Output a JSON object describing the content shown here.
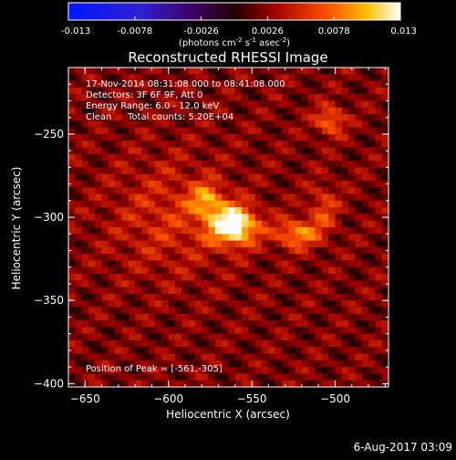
{
  "colorbar": {
    "ticks": [
      "-0.013",
      "-0.0078",
      "-0.0026",
      "0.0026",
      "0.0078",
      "0.013"
    ],
    "unit_label": "(photons cm",
    "unit_exp1": "-2",
    "unit_mid": " s",
    "unit_exp2": "-1",
    "unit_tail": " asec",
    "unit_exp3": "-2",
    "unit_close": ")"
  },
  "title": "Reconstructed RHESSI Image",
  "annotations": {
    "time_range": "17-Nov-2014 08:31:08.000 to 08:41:08.000",
    "detectors": "Detectors: 3F 6F 9F, Att 0",
    "energy": "Energy Range: 6.0 - 12.0 keV",
    "clean": "Clean",
    "total_counts": "Total counts: 5.20E+04",
    "peak": "Position of Peak = [-561,-305]"
  },
  "footer_date": "6-Aug-2017 03:09",
  "chart_data": {
    "type": "heatmap",
    "title": "Reconstructed RHESSI Image",
    "xlabel": "Heliocentric X (arcsec)",
    "ylabel": "Heliocentric Y (arcsec)",
    "xlim": [
      -660,
      -468
    ],
    "ylim": [
      -402,
      -210
    ],
    "x_ticks": [
      -650,
      -600,
      -550,
      -500
    ],
    "y_ticks": [
      -250,
      -300,
      -350,
      -400
    ],
    "colorbar_range": [
      -0.013,
      0.013
    ],
    "peak": [
      -561,
      -305
    ],
    "sources": [
      {
        "x": -561,
        "y": -305,
        "amp": 0.0125,
        "sx": 10,
        "sy": 8
      },
      {
        "x": -577,
        "y": -290,
        "amp": 0.006,
        "sx": 7,
        "sy": 7
      },
      {
        "x": -523,
        "y": -310,
        "amp": 0.007,
        "sx": 9,
        "sy": 6
      },
      {
        "x": -503,
        "y": -242,
        "amp": 0.006,
        "sx": 6,
        "sy": 6
      },
      {
        "x": -507,
        "y": -295,
        "amp": 0.004,
        "sx": 6,
        "sy": 10
      },
      {
        "x": -600,
        "y": -300,
        "amp": 0.003,
        "sx": 25,
        "sy": 25
      }
    ]
  }
}
